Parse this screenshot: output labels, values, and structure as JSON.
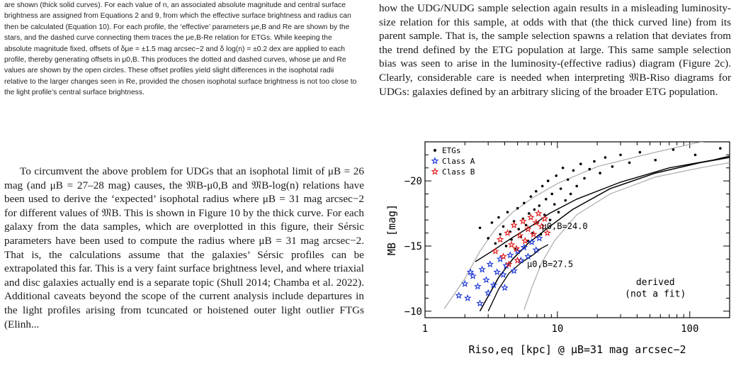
{
  "caption": {
    "text": "are shown (thick solid curves). For each value of n, an associated absolute magnitude and central surface brightness are assigned from Equations 2 and 9, from which the effective surface brightness and radius can then be calculated (Equation 10). For each profile, the ‘effective’ parameters μe,B and Re are shown by the stars, and the dashed curve connecting them traces the μe,B-Re relation for ETGs. While keeping the absolute magnitude fixed, offsets of δμe = ±1.5 mag arcsec−2 and δ log(n) = ±0.2 dex are applied to each profile, thereby generating offsets in μ0,B. This produces the dotted and dashed curves, whose μe and Re values are shown by the open circles. These offset profiles yield slight differences in the isophotal radii relative to the larger changes seen in Re, provided the chosen isophotal surface brightness is not too close to the light profile’s central surface brightness."
  },
  "left_text": {
    "para": "To circumvent the above problem for UDGs that an isophotal limit of μB = 26 mag (and μB = 27–28 mag) causes, the 𝔐B-μ0,B and 𝔐B-log(n) relations have been used to derive the ‘expected’ isophotal radius where μB = 31 mag arcsec−2 for different values of 𝔐B. This is shown in Figure 10 by the thick curve. For each galaxy from the data samples, which are overplotted in this figure, their Sérsic parameters have been used to compute the radius where μB = 31 mag arcsec−2. That is, the calculations assume that the galaxies’ Sérsic profiles can be extrapolated this far. This is a very faint surface brightness level, and where triaxial and disc galaxies actually end is a separate topic (Shull 2014; Chamba et al. 2022). Additional caveats beyond the scope of the current analysis include departures in the light profiles arising from tcuncated or hoistened outer light outlier FTGs (Elinh..."
  },
  "right_text": {
    "para": "how the UDG/NUDG sample selection again results in a misleading luminosity-size relation for this sample, at odds with that (the thick curved line) from its parent sample. That is, the sample selection spawns a relation that deviates from the trend defined by the ETG population at large. This same sample selection bias was seen to arise in the luminosity-(effective radius) diagram (Figure 2c). Clearly, considerable care is needed when interpreting 𝔐B-Riso diagrams for UDGs: galaxies defined by an arbitrary slicing of the broader ETG population."
  },
  "chart_data": {
    "type": "scatter",
    "x_scale": "log",
    "xlim": [
      1,
      200
    ],
    "ylim": [
      -9.5,
      -23
    ],
    "xlabel": "Riso,eq [kpc] @ μB=31 mag arcsec−2",
    "ylabel": "MB [mag]",
    "x_ticks": [
      "1",
      "10",
      "100"
    ],
    "y_ticks": [
      "−10",
      "−15",
      "−20"
    ],
    "legend": [
      "ETGs",
      "Class A",
      "Class B"
    ],
    "annotations": [
      "μ0,B=24.0",
      "μ0,B=27.5",
      "derived",
      "(not a fit)"
    ],
    "series": [
      {
        "name": "ETGs",
        "marker": "dot",
        "color": "#000000",
        "points": [
          [
            2.6,
            -16.4
          ],
          [
            3.0,
            -15.6
          ],
          [
            3.2,
            -16.8
          ],
          [
            3.4,
            -15.2
          ],
          [
            3.6,
            -17.2
          ],
          [
            3.7,
            -15.9
          ],
          [
            3.9,
            -16.5
          ],
          [
            4.1,
            -15.0
          ],
          [
            4.2,
            -17.6
          ],
          [
            4.4,
            -16.1
          ],
          [
            4.5,
            -15.5
          ],
          [
            4.7,
            -16.9
          ],
          [
            4.8,
            -14.8
          ],
          [
            5.0,
            -17.9
          ],
          [
            5.1,
            -16.3
          ],
          [
            5.3,
            -15.7
          ],
          [
            5.5,
            -17.1
          ],
          [
            5.6,
            -18.3
          ],
          [
            5.8,
            -16.6
          ],
          [
            6.0,
            -15.4
          ],
          [
            6.1,
            -17.5
          ],
          [
            6.3,
            -18.8
          ],
          [
            6.5,
            -16.0
          ],
          [
            6.7,
            -17.8
          ],
          [
            6.9,
            -19.2
          ],
          [
            7.1,
            -16.8
          ],
          [
            7.3,
            -18.1
          ],
          [
            7.5,
            -15.9
          ],
          [
            7.7,
            -19.6
          ],
          [
            8.0,
            -17.4
          ],
          [
            8.2,
            -18.6
          ],
          [
            8.5,
            -20.0
          ],
          [
            8.8,
            -17.0
          ],
          [
            9.1,
            -19.0
          ],
          [
            9.5,
            -18.2
          ],
          [
            9.8,
            -20.4
          ],
          [
            10.2,
            -17.6
          ],
          [
            10.6,
            -19.4
          ],
          [
            11.0,
            -21.0
          ],
          [
            11.5,
            -18.5
          ],
          [
            12.0,
            -20.1
          ],
          [
            12.6,
            -19.0
          ],
          [
            13.2,
            -20.8
          ],
          [
            14.0,
            -19.6
          ],
          [
            15.0,
            -21.3
          ],
          [
            16.0,
            -20.2
          ],
          [
            17.5,
            -20.9
          ],
          [
            19.0,
            -21.5
          ],
          [
            21.0,
            -20.6
          ],
          [
            23.0,
            -21.8
          ],
          [
            26.0,
            -21.1
          ],
          [
            30.0,
            -22.0
          ],
          [
            35.0,
            -21.4
          ],
          [
            42.0,
            -22.2
          ],
          [
            55.0,
            -21.6
          ],
          [
            75.0,
            -22.4
          ],
          [
            110.0,
            -22.0
          ],
          [
            170.0,
            -22.5
          ]
        ]
      },
      {
        "name": "Class A",
        "marker": "star",
        "color": "#1a35d8",
        "points": [
          [
            1.8,
            -11.2
          ],
          [
            2.0,
            -12.1
          ],
          [
            2.1,
            -11.0
          ],
          [
            2.3,
            -12.7
          ],
          [
            2.5,
            -11.9
          ],
          [
            2.7,
            -13.2
          ],
          [
            2.9,
            -12.4
          ],
          [
            3.1,
            -13.6
          ],
          [
            3.3,
            -12.0
          ],
          [
            3.5,
            -13.0
          ],
          [
            3.7,
            -14.0
          ],
          [
            3.9,
            -12.8
          ],
          [
            4.1,
            -13.5
          ],
          [
            4.4,
            -14.3
          ],
          [
            4.7,
            -13.1
          ],
          [
            5.0,
            -14.6
          ],
          [
            5.3,
            -13.9
          ],
          [
            5.6,
            -14.9
          ],
          [
            6.0,
            -14.2
          ],
          [
            6.4,
            -15.3
          ],
          [
            6.9,
            -14.7
          ],
          [
            7.3,
            -15.6
          ],
          [
            2.2,
            -13.0
          ],
          [
            2.6,
            -10.6
          ],
          [
            3.0,
            -11.4
          ],
          [
            4.0,
            -11.8
          ]
        ]
      },
      {
        "name": "Class B",
        "marker": "star",
        "color": "#e01818",
        "points": [
          [
            3.4,
            -14.6
          ],
          [
            3.7,
            -15.5
          ],
          [
            3.9,
            -14.2
          ],
          [
            4.2,
            -16.0
          ],
          [
            4.5,
            -15.1
          ],
          [
            4.7,
            -16.6
          ],
          [
            4.9,
            -14.8
          ],
          [
            5.2,
            -15.8
          ],
          [
            5.5,
            -16.9
          ],
          [
            5.7,
            -15.4
          ],
          [
            6.0,
            -16.3
          ],
          [
            6.3,
            -17.2
          ],
          [
            6.6,
            -15.9
          ],
          [
            6.9,
            -16.8
          ],
          [
            7.2,
            -17.5
          ],
          [
            7.6,
            -16.5
          ],
          [
            8.0,
            -17.1
          ],
          [
            8.4,
            -16.0
          ],
          [
            4.3,
            -13.6
          ],
          [
            5.0,
            -13.9
          ]
        ]
      }
    ]
  }
}
